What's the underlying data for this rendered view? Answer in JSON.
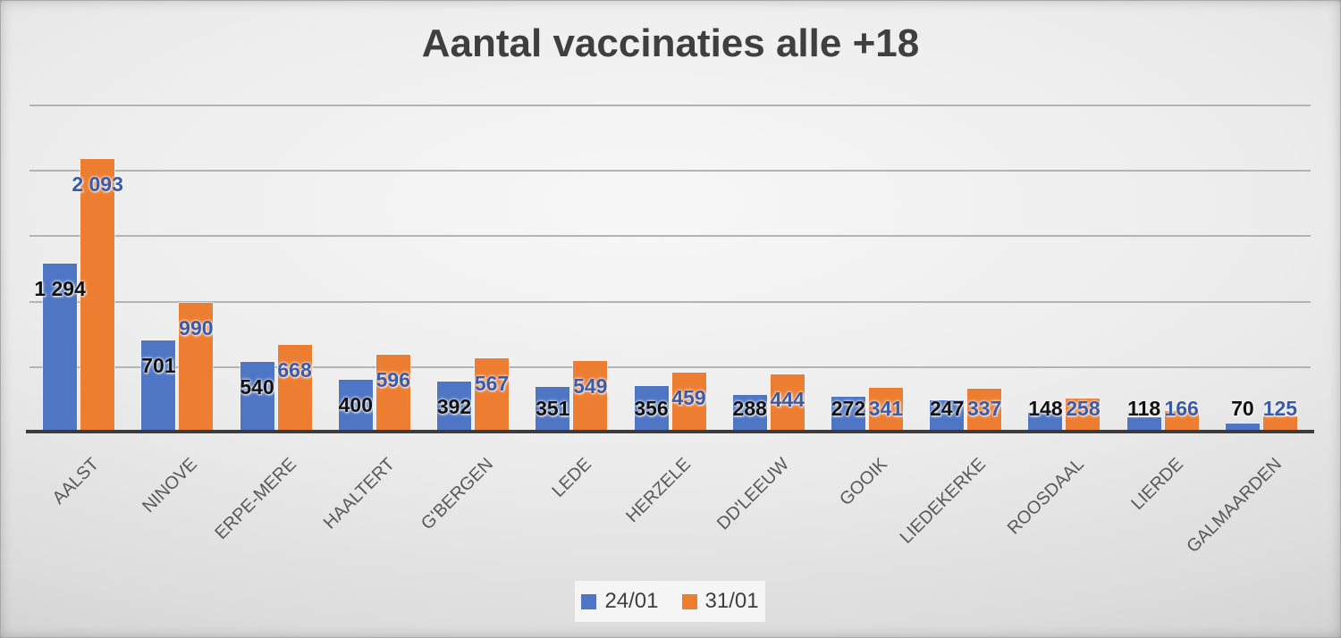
{
  "title": "Aantal vaccinaties alle +18",
  "legend": {
    "position": "bottom"
  },
  "colors": {
    "series1": "#4e76c5",
    "series2": "#ED7D31",
    "series1_label": "#111111",
    "series2_label": "#3a5ba9",
    "title_text": "#3f3f3f",
    "axis_label_text": "#595959",
    "gridline": "#b3b3b3",
    "axis_line": "#3c3c3c"
  },
  "chart_data": {
    "type": "bar",
    "title": "Aantal vaccinaties alle +18",
    "categories": [
      "AALST",
      "NINOVE",
      "ERPE-MERE",
      "HAALTERT",
      "G'BERGEN",
      "LEDE",
      "HERZELE",
      "DD'LEEUW",
      "GOOIK",
      "LIEDEKERKE",
      "ROOSDAAL",
      "LIERDE",
      "GALMAARDEN"
    ],
    "series": [
      {
        "name": "24/01",
        "color": "#4e76c5",
        "label_color": "#111111",
        "values": [
          1294,
          701,
          540,
          400,
          392,
          351,
          356,
          288,
          272,
          247,
          148,
          118,
          70
        ],
        "labels": [
          "1 294",
          "701",
          "540",
          "400",
          "392",
          "351",
          "356",
          "288",
          "272",
          "247",
          "148",
          "118",
          "70"
        ]
      },
      {
        "name": "31/01",
        "color": "#ED7D31",
        "label_color": "#3a5ba9",
        "values": [
          2093,
          990,
          668,
          596,
          567,
          549,
          459,
          444,
          341,
          337,
          258,
          166,
          125
        ],
        "labels": [
          "2 093",
          "990",
          "668",
          "596",
          "567",
          "549",
          "459",
          "444",
          "341",
          "337",
          "258",
          "166",
          "125"
        ]
      }
    ],
    "xlabel": "",
    "ylabel": "",
    "ylim": [
      0,
      2500
    ],
    "gridline_step": 500,
    "grid": true,
    "y_axis_labels_visible": false,
    "legend_position": "bottom",
    "category_label_rotation_deg": 45
  }
}
